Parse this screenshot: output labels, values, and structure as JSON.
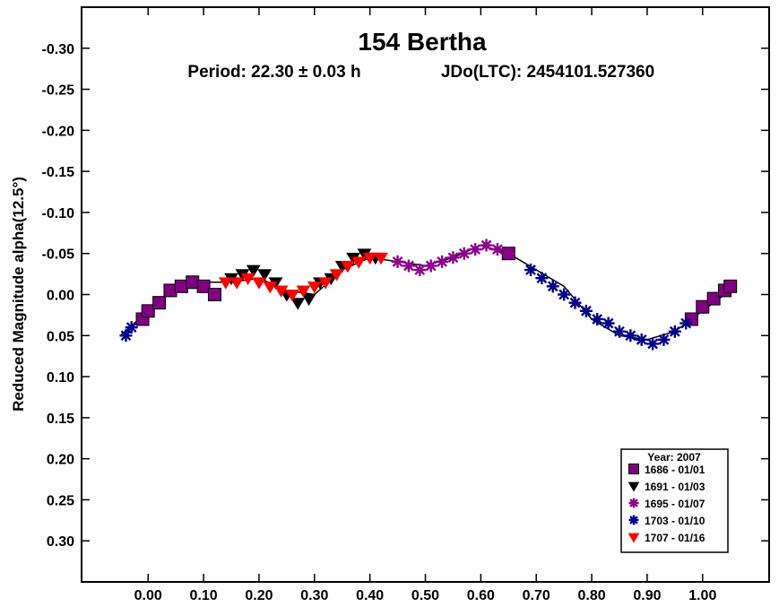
{
  "chart_data": {
    "type": "scatter",
    "title": "154 Bertha",
    "period_text": "Period: 22.30 ± 0.03 h",
    "epoch_text": "JDo(LTC): 2454101.527360",
    "xlabel": "",
    "ylabel": "Reduced Magnitude alpha(12.5°)",
    "xlim": [
      -0.12,
      1.12
    ],
    "ylim": [
      -0.35,
      0.35
    ],
    "y_inverted": true,
    "grid": false,
    "legend_position": "bottom-right",
    "x_ticks": [
      "0.00",
      "0.10",
      "0.20",
      "0.30",
      "0.40",
      "0.50",
      "0.60",
      "0.70",
      "0.80",
      "0.90",
      "1.00"
    ],
    "y_ticks": [
      "-0.30",
      "-0.25",
      "-0.20",
      "-0.15",
      "-0.10",
      "-0.05",
      "0.00",
      "0.05",
      "0.10",
      "0.15",
      "0.20",
      "0.25",
      "0.30"
    ],
    "legend_title": "Year: 2007",
    "fit_curve": {
      "x": [
        -0.05,
        0.0,
        0.05,
        0.1,
        0.15,
        0.2,
        0.25,
        0.3,
        0.35,
        0.4,
        0.45,
        0.5,
        0.55,
        0.6,
        0.65,
        0.7,
        0.75,
        0.8,
        0.85,
        0.9,
        0.95,
        1.0,
        1.05
      ],
      "y": [
        0.05,
        0.02,
        -0.01,
        -0.015,
        -0.015,
        -0.02,
        -0.005,
        0.0,
        -0.03,
        -0.045,
        -0.04,
        -0.035,
        -0.045,
        -0.06,
        -0.05,
        -0.03,
        -0.01,
        0.03,
        0.05,
        0.055,
        0.045,
        0.02,
        -0.005
      ]
    },
    "series": [
      {
        "name": "1686 - 01/01",
        "marker": "square",
        "color": "#800080",
        "x": [
          -0.01,
          0.0,
          0.02,
          0.04,
          0.06,
          0.08,
          0.1,
          0.12,
          0.65,
          0.98,
          1.0,
          1.02,
          1.04,
          1.05
        ],
        "y": [
          0.03,
          0.02,
          0.01,
          -0.005,
          -0.01,
          -0.015,
          -0.01,
          0.0,
          -0.05,
          0.03,
          0.015,
          0.005,
          -0.005,
          -0.01
        ]
      },
      {
        "name": "1691 - 01/03",
        "marker": "triangle-down",
        "color": "#000000",
        "x": [
          0.15,
          0.17,
          0.19,
          0.21,
          0.23,
          0.25,
          0.27,
          0.29,
          0.31,
          0.33,
          0.35,
          0.37,
          0.39,
          0.41
        ],
        "y": [
          -0.02,
          -0.025,
          -0.03,
          -0.025,
          -0.015,
          0.0,
          0.01,
          0.005,
          -0.015,
          -0.02,
          -0.035,
          -0.045,
          -0.05,
          -0.045
        ]
      },
      {
        "name": "1695 - 01/07",
        "marker": "asterisk",
        "color": "#8B008B",
        "x": [
          0.45,
          0.47,
          0.49,
          0.51,
          0.53,
          0.55,
          0.57,
          0.59,
          0.61,
          0.63,
          0.65
        ],
        "y": [
          -0.04,
          -0.035,
          -0.03,
          -0.035,
          -0.04,
          -0.045,
          -0.05,
          -0.055,
          -0.06,
          -0.055,
          -0.05
        ]
      },
      {
        "name": "1703 - 01/10",
        "marker": "asterisk",
        "color": "#00008B",
        "x": [
          -0.04,
          -0.03,
          0.69,
          0.71,
          0.73,
          0.75,
          0.77,
          0.79,
          0.81,
          0.83,
          0.85,
          0.87,
          0.89,
          0.91,
          0.93,
          0.95,
          0.97
        ],
        "y": [
          0.05,
          0.04,
          -0.03,
          -0.02,
          -0.01,
          0.0,
          0.01,
          0.02,
          0.03,
          0.035,
          0.045,
          0.05,
          0.055,
          0.06,
          0.055,
          0.045,
          0.035
        ]
      },
      {
        "name": "1707 - 01/16",
        "marker": "triangle-down",
        "color": "#FF0000",
        "x": [
          0.14,
          0.16,
          0.18,
          0.2,
          0.22,
          0.24,
          0.26,
          0.28,
          0.3,
          0.32,
          0.34,
          0.36,
          0.38,
          0.4,
          0.42
        ],
        "y": [
          -0.015,
          -0.015,
          -0.02,
          -0.015,
          -0.01,
          -0.005,
          0.0,
          -0.005,
          -0.01,
          -0.015,
          -0.025,
          -0.035,
          -0.04,
          -0.045,
          -0.045
        ]
      }
    ]
  }
}
